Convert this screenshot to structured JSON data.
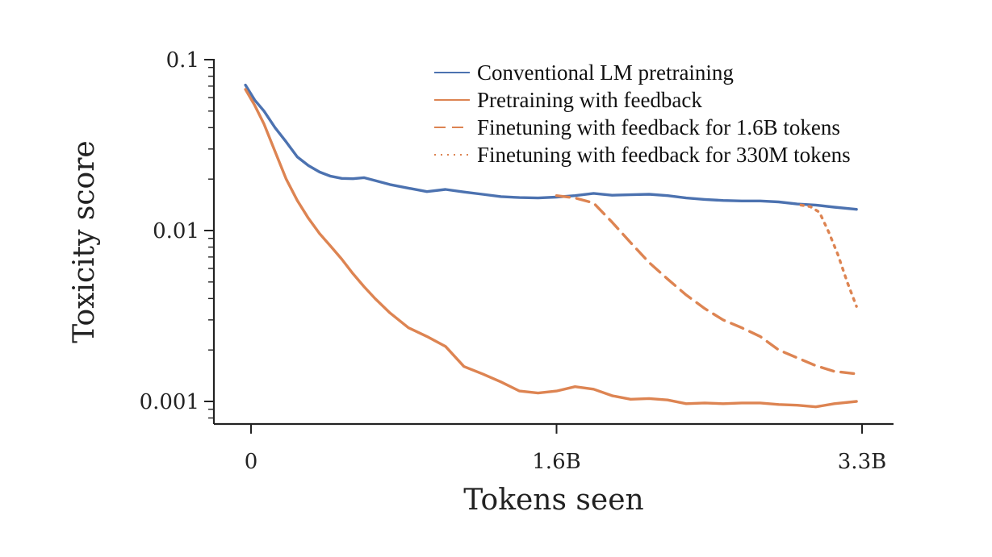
{
  "chart_data": {
    "type": "line",
    "title": "",
    "xlabel": "Tokens seen",
    "ylabel": "Toxicity score",
    "x_unit": "billions of tokens",
    "xlim": [
      -0.05,
      3.5
    ],
    "ylim": [
      0.00075,
      0.1
    ],
    "y_scale": "log",
    "grid": false,
    "legend_position": "top-right",
    "x_ticks": [
      {
        "value": 0,
        "label": "0"
      },
      {
        "value": 1.65,
        "label": "1.6B"
      },
      {
        "value": 3.3,
        "label": "3.3B"
      }
    ],
    "y_ticks": [
      {
        "value": 0.1,
        "label": "0.1"
      },
      {
        "value": 0.01,
        "label": "0.01"
      },
      {
        "value": 0.001,
        "label": "0.001"
      }
    ],
    "series": [
      {
        "name": "Conventional LM pretraining",
        "color": "#4c72b0",
        "dash": "solid",
        "x": [
          -0.03,
          0.02,
          0.07,
          0.13,
          0.19,
          0.25,
          0.31,
          0.37,
          0.43,
          0.49,
          0.55,
          0.61,
          0.67,
          0.75,
          0.85,
          0.95,
          1.05,
          1.15,
          1.25,
          1.35,
          1.45,
          1.55,
          1.65,
          1.75,
          1.85,
          1.95,
          2.05,
          2.15,
          2.25,
          2.35,
          2.45,
          2.55,
          2.65,
          2.75,
          2.85,
          2.95,
          3.05,
          3.15,
          3.27
        ],
        "y": [
          0.071,
          0.058,
          0.05,
          0.04,
          0.033,
          0.027,
          0.024,
          0.022,
          0.0208,
          0.0202,
          0.0201,
          0.0204,
          0.0196,
          0.0186,
          0.0177,
          0.0169,
          0.0174,
          0.0168,
          0.0163,
          0.0158,
          0.0156,
          0.0155,
          0.0157,
          0.016,
          0.0165,
          0.0161,
          0.0162,
          0.0163,
          0.016,
          0.0155,
          0.0152,
          0.015,
          0.0149,
          0.0149,
          0.0147,
          0.0143,
          0.0141,
          0.0137,
          0.0133
        ]
      },
      {
        "name": "Pretraining with feedback",
        "color": "#dd8452",
        "dash": "solid",
        "x": [
          -0.03,
          0.02,
          0.07,
          0.13,
          0.19,
          0.25,
          0.31,
          0.37,
          0.43,
          0.49,
          0.55,
          0.61,
          0.67,
          0.75,
          0.85,
          0.95,
          1.05,
          1.15,
          1.25,
          1.35,
          1.45,
          1.55,
          1.65,
          1.75,
          1.85,
          1.95,
          2.05,
          2.15,
          2.25,
          2.35,
          2.45,
          2.55,
          2.65,
          2.75,
          2.85,
          2.95,
          3.05,
          3.15,
          3.27
        ],
        "y": [
          0.067,
          0.054,
          0.042,
          0.029,
          0.02,
          0.015,
          0.0118,
          0.0096,
          0.0081,
          0.0068,
          0.0056,
          0.0047,
          0.004,
          0.0033,
          0.0027,
          0.0024,
          0.0021,
          0.0016,
          0.00145,
          0.0013,
          0.00115,
          0.00112,
          0.00115,
          0.00122,
          0.00118,
          0.00108,
          0.00103,
          0.00104,
          0.00102,
          0.00097,
          0.00098,
          0.00097,
          0.00098,
          0.00098,
          0.00096,
          0.00095,
          0.00093,
          0.00097,
          0.001
        ]
      },
      {
        "name": "Finetuning with feedback for 1.6B tokens",
        "color": "#dd8452",
        "dash": "dashed",
        "x": [
          1.65,
          1.75,
          1.85,
          1.95,
          2.05,
          2.15,
          2.25,
          2.35,
          2.45,
          2.55,
          2.65,
          2.75,
          2.85,
          2.95,
          3.05,
          3.15,
          3.27
        ],
        "y": [
          0.016,
          0.0155,
          0.0145,
          0.0112,
          0.0085,
          0.0065,
          0.0052,
          0.0042,
          0.0035,
          0.003,
          0.0027,
          0.0024,
          0.002,
          0.0018,
          0.00162,
          0.0015,
          0.00145
        ]
      },
      {
        "name": "Finetuning with feedback for 330M tokens",
        "color": "#dd8452",
        "dash": "dotted",
        "x": [
          2.97,
          3.02,
          3.07,
          3.12,
          3.17,
          3.22,
          3.27
        ],
        "y": [
          0.0141,
          0.0138,
          0.0128,
          0.0098,
          0.0072,
          0.005,
          0.0036
        ]
      }
    ]
  }
}
